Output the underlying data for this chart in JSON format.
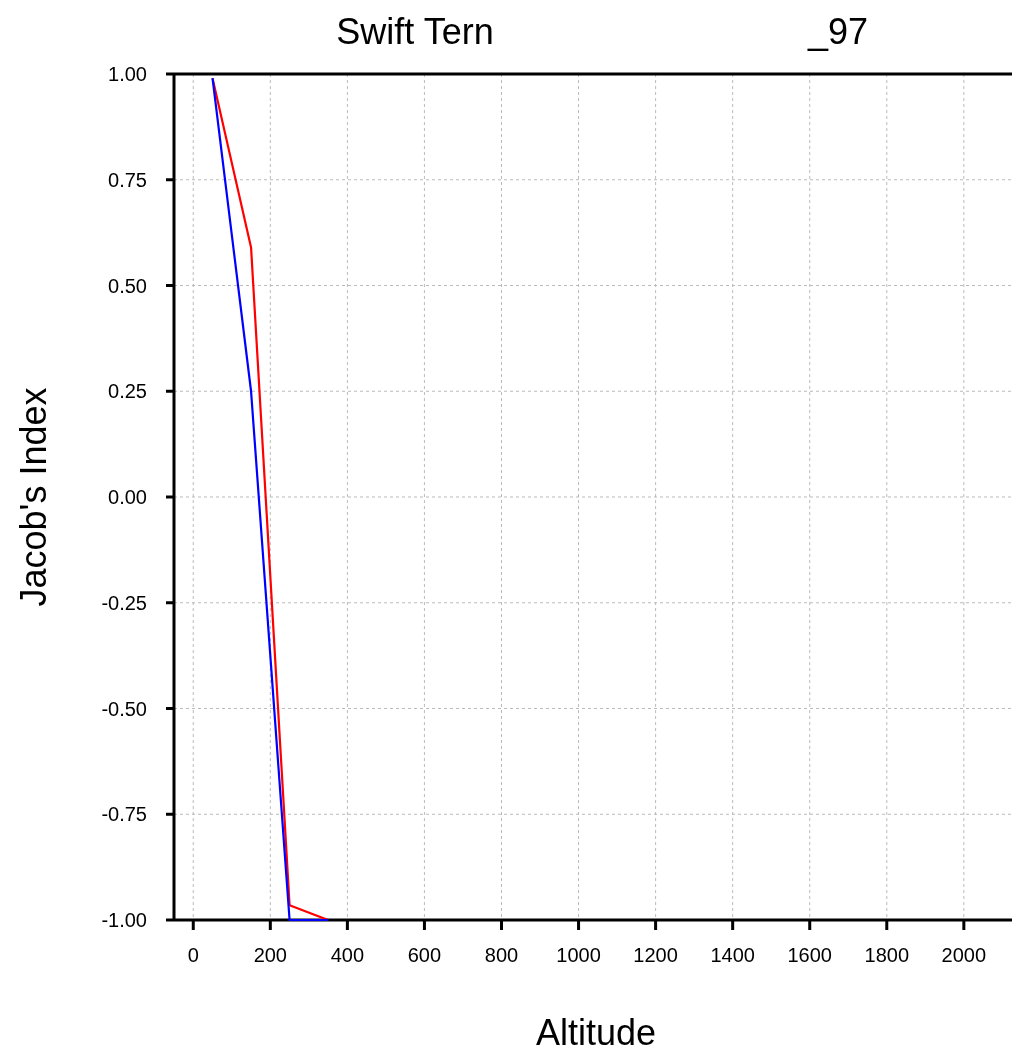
{
  "chart_data": {
    "type": "line",
    "title": "Swift Tern",
    "subtitle": "_97",
    "xlabel": "Altitude",
    "ylabel": "Jacob's Index",
    "series": [
      {
        "color": "#ff0000",
        "x": [
          50,
          150,
          250,
          350
        ],
        "values": [
          0.99,
          0.59,
          -0.965,
          -1
        ]
      },
      {
        "color": "#0000ff",
        "x": [
          50,
          150,
          250,
          350
        ],
        "values": [
          0.99,
          0.25,
          -1,
          -1
        ]
      }
    ],
    "xlim": [
      -50,
      2125
    ],
    "xticks": [
      0,
      200,
      400,
      600,
      800,
      1000,
      1200,
      1400,
      1600,
      1800,
      2000
    ],
    "ylim": [
      -1,
      1
    ],
    "yticks": [
      {
        "value": -1,
        "label": "-1.00"
      },
      {
        "value": -0.75,
        "label": "-0.75"
      },
      {
        "value": -0.5,
        "label": "-0.50"
      },
      {
        "value": -0.25,
        "label": "-0.25"
      },
      {
        "value": 0,
        "label": "0.00"
      },
      {
        "value": 0.25,
        "label": "0.25"
      },
      {
        "value": 0.5,
        "label": "0.50"
      },
      {
        "value": 0.75,
        "label": "0.75"
      },
      {
        "value": 1,
        "label": "1.00"
      }
    ],
    "grid": true,
    "marker": "none",
    "line_style": "solid"
  }
}
